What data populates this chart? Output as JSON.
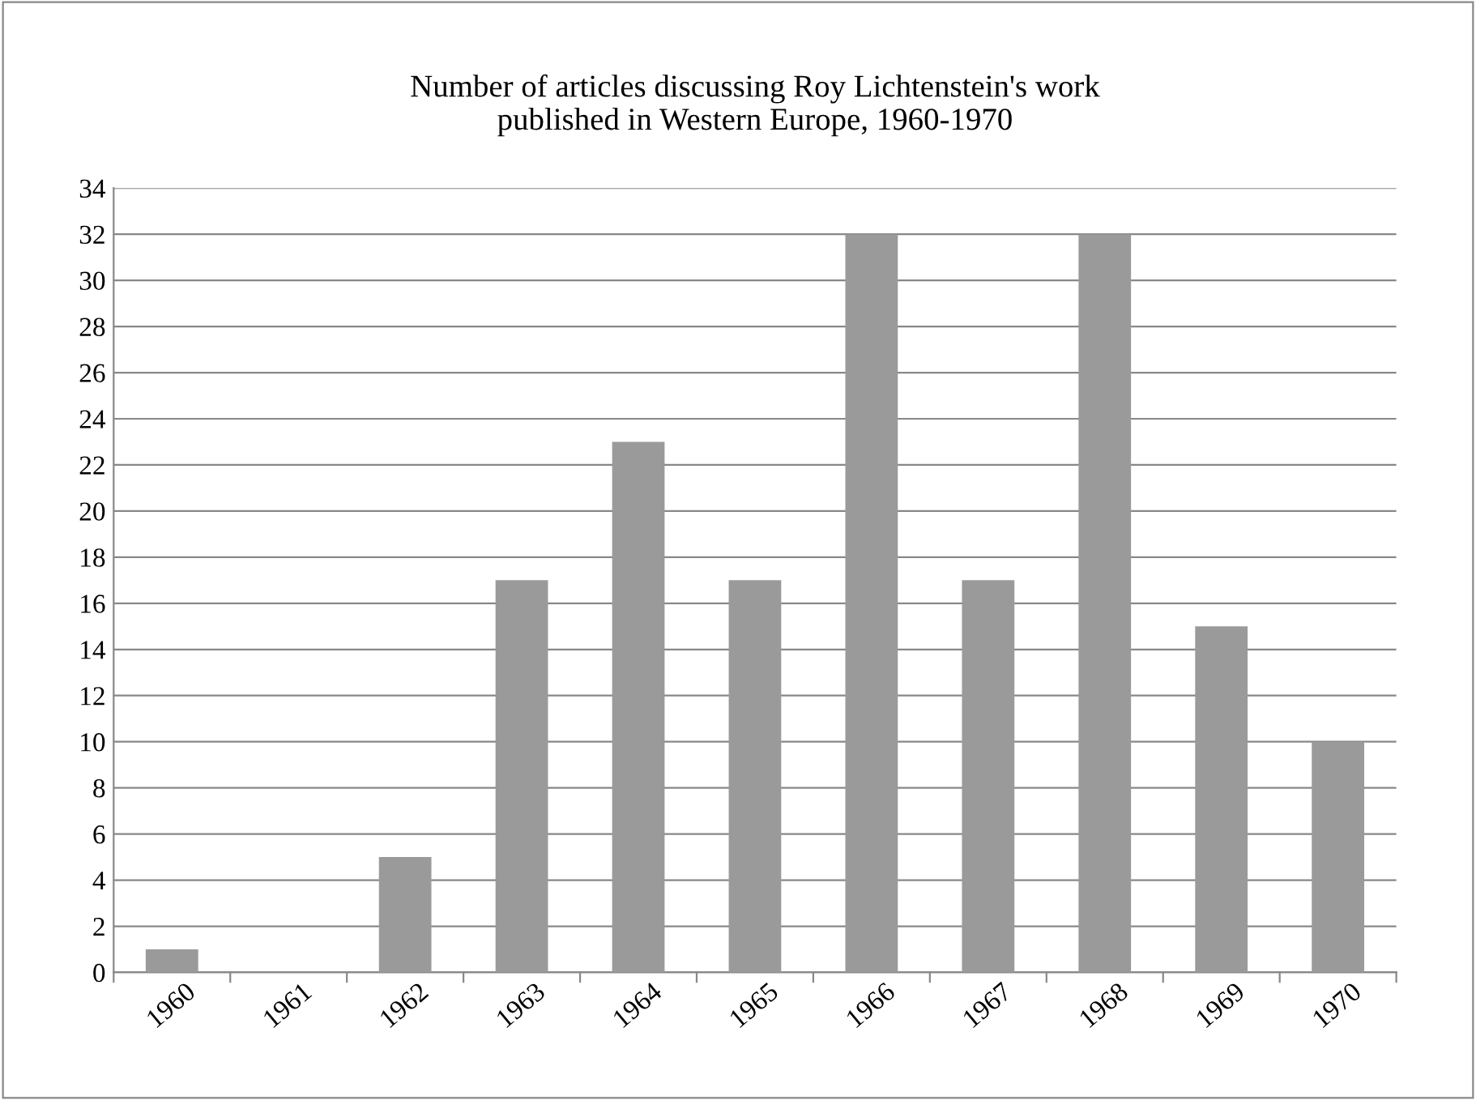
{
  "chart_data": {
    "type": "bar",
    "title": "Number of articles discussing Roy Lichtenstein's work\npublished in Western Europe, 1960-1970",
    "categories": [
      "1960",
      "1961",
      "1962",
      "1963",
      "1964",
      "1965",
      "1966",
      "1967",
      "1968",
      "1969",
      "1970"
    ],
    "values": [
      1,
      0,
      5,
      17,
      23,
      17,
      32,
      17,
      32,
      15,
      10
    ],
    "color": "#9a9a9a",
    "ylim": [
      0,
      34
    ],
    "yticks": [
      0,
      2,
      4,
      6,
      8,
      10,
      12,
      14,
      16,
      18,
      20,
      22,
      24,
      26,
      28,
      30,
      32,
      34
    ],
    "grid": "y",
    "legend": false
  }
}
